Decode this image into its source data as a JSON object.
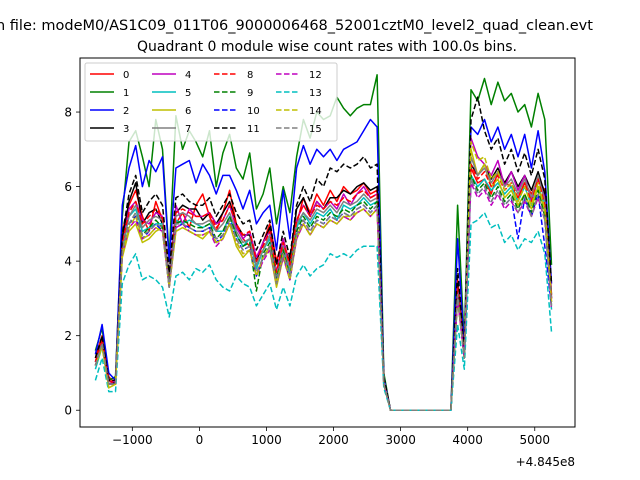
{
  "figure": {
    "suptitle": "n file: modeM0/AS1C09_011T06_9000006468_52001cztM0_level2_quad_clean.evt",
    "title": "Quadrant 0 module wise count rates with 100.0s bins.",
    "offset_text": "+4.845e8"
  },
  "chart_data": {
    "type": "line",
    "title": "Quadrant 0 module wise count rates with 100.0s bins.",
    "xlabel": "",
    "ylabel": "",
    "x_offset": 484500000,
    "xlim": [
      -1780,
      5600
    ],
    "ylim": [
      -0.45,
      9.45
    ],
    "xticks": [
      -1000,
      0,
      1000,
      2000,
      3000,
      4000,
      5000
    ],
    "xtick_labels": [
      "−1000",
      "0",
      "1000",
      "2000",
      "3000",
      "4000",
      "5000"
    ],
    "yticks": [
      0,
      2,
      4,
      6,
      8
    ],
    "ytick_labels": [
      "0",
      "2",
      "4",
      "6",
      "8"
    ],
    "legend": {
      "location": "top-left",
      "columns": 4
    },
    "x": [
      -1550,
      -1450,
      -1350,
      -1250,
      -1150,
      -1050,
      -950,
      -850,
      -750,
      -650,
      -550,
      -450,
      -350,
      -250,
      -150,
      -50,
      50,
      150,
      250,
      350,
      450,
      550,
      650,
      750,
      850,
      950,
      1050,
      1150,
      1250,
      1350,
      1450,
      1550,
      1650,
      1750,
      1850,
      1950,
      2050,
      2150,
      2250,
      2350,
      2450,
      2550,
      2650,
      2750,
      2850,
      2950,
      3050,
      3150,
      3250,
      3350,
      3450,
      3550,
      3650,
      3750,
      3850,
      3950,
      4050,
      4150,
      4250,
      4350,
      4450,
      4550,
      4650,
      4750,
      4850,
      4950,
      5050,
      5150,
      5250
    ],
    "series": [
      {
        "name": "0",
        "color": "#ff0000",
        "dash": "solid",
        "values": [
          1.4,
          2.0,
          0.9,
          0.7,
          4.8,
          5.5,
          5.9,
          5.2,
          4.8,
          5.6,
          5.1,
          3.5,
          5.0,
          5.3,
          4.9,
          5.5,
          5.8,
          5.2,
          4.8,
          5.3,
          5.9,
          5.0,
          4.6,
          4.4,
          4.0,
          4.5,
          5.0,
          4.0,
          4.6,
          3.9,
          5.0,
          5.7,
          5.3,
          5.8,
          5.5,
          5.9,
          5.6,
          6.0,
          5.8,
          5.9,
          6.1,
          5.8,
          5.9,
          0.8,
          0,
          0,
          0,
          0,
          0,
          0,
          0,
          0,
          0,
          0,
          3.5,
          1.6,
          6.5,
          6.1,
          6.2,
          5.8,
          6.4,
          6.1,
          6.0,
          5.7,
          6.1,
          5.8,
          6.2,
          5.9,
          3.0
        ]
      },
      {
        "name": "1",
        "color": "#008000",
        "dash": "solid",
        "values": [
          1.6,
          2.2,
          0.8,
          0.9,
          5.2,
          7.2,
          7.5,
          6.8,
          6.0,
          7.8,
          7.0,
          4.1,
          7.9,
          7.0,
          7.5,
          7.2,
          6.8,
          7.5,
          6.0,
          6.9,
          7.4,
          6.5,
          6.2,
          6.9,
          5.4,
          5.8,
          6.5,
          5.0,
          6.0,
          5.3,
          6.8,
          7.8,
          7.3,
          8.0,
          7.8,
          7.9,
          8.4,
          8.1,
          7.9,
          8.1,
          8.2,
          8.2,
          9.0,
          1.0,
          0,
          0,
          0,
          0,
          0,
          0,
          0,
          0,
          0,
          0,
          5.5,
          1.8,
          8.6,
          8.3,
          8.9,
          8.2,
          8.8,
          8.3,
          8.5,
          8.0,
          8.2,
          7.6,
          8.5,
          7.8,
          3.9
        ]
      },
      {
        "name": "2",
        "color": "#0000ff",
        "dash": "solid",
        "values": [
          1.5,
          2.3,
          1.0,
          0.8,
          5.5,
          6.5,
          7.1,
          6.0,
          6.7,
          6.4,
          6.8,
          4.0,
          6.5,
          6.6,
          6.7,
          6.1,
          6.6,
          6.3,
          5.8,
          6.3,
          6.3,
          5.9,
          5.4,
          5.9,
          5.0,
          5.3,
          5.5,
          4.3,
          5.9,
          4.6,
          6.5,
          7.1,
          6.6,
          7.0,
          6.8,
          7.0,
          6.7,
          7.0,
          7.1,
          7.2,
          7.5,
          7.8,
          7.6,
          0.9,
          0,
          0,
          0,
          0,
          0,
          0,
          0,
          0,
          0,
          0,
          4.6,
          1.7,
          7.6,
          7.4,
          7.8,
          7.2,
          7.6,
          7.0,
          7.4,
          6.8,
          7.4,
          6.5,
          7.5,
          6.4,
          3.4
        ]
      },
      {
        "name": "3",
        "color": "#000000",
        "dash": "solid",
        "values": [
          1.3,
          1.9,
          0.8,
          0.7,
          4.6,
          5.6,
          6.1,
          5.0,
          5.3,
          5.4,
          5.0,
          3.6,
          5.3,
          5.5,
          5.4,
          5.4,
          5.1,
          5.3,
          5.0,
          5.3,
          5.6,
          5.0,
          4.7,
          4.7,
          4.0,
          4.5,
          4.9,
          3.6,
          4.4,
          4.0,
          5.4,
          5.7,
          5.2,
          5.6,
          5.4,
          5.7,
          5.7,
          5.9,
          5.8,
          6.0,
          6.1,
          5.9,
          6.0,
          0.8,
          0,
          0,
          0,
          0,
          0,
          0,
          0,
          0,
          0,
          0,
          3.4,
          1.5,
          6.6,
          6.3,
          6.6,
          6.2,
          6.5,
          6.1,
          6.4,
          6.0,
          6.3,
          5.9,
          6.4,
          5.8,
          3.1
        ]
      },
      {
        "name": "4",
        "color": "#bf00bf",
        "dash": "solid",
        "values": [
          1.2,
          1.8,
          0.7,
          0.8,
          4.4,
          5.4,
          5.6,
          5.1,
          5.0,
          5.3,
          5.2,
          3.4,
          5.5,
          5.0,
          5.4,
          5.2,
          5.2,
          5.3,
          5.0,
          5.1,
          5.5,
          4.9,
          4.6,
          4.8,
          4.1,
          4.5,
          4.8,
          3.7,
          4.6,
          3.8,
          5.1,
          5.5,
          5.2,
          5.6,
          5.4,
          5.6,
          5.4,
          5.8,
          5.5,
          5.8,
          6.0,
          5.7,
          5.8,
          0.8,
          0,
          0,
          0,
          0,
          0,
          0,
          0,
          0,
          0,
          0,
          3.3,
          1.5,
          7.3,
          6.8,
          6.6,
          6.3,
          6.7,
          6.0,
          6.4,
          5.9,
          6.3,
          5.6,
          6.2,
          5.7,
          3.0
        ]
      },
      {
        "name": "5",
        "color": "#00bfbf",
        "dash": "solid",
        "values": [
          1.1,
          1.7,
          0.7,
          0.7,
          4.3,
          5.2,
          5.4,
          4.8,
          4.9,
          5.0,
          5.0,
          3.3,
          5.1,
          5.0,
          5.1,
          5.0,
          4.9,
          5.0,
          4.8,
          4.8,
          5.2,
          4.7,
          4.4,
          4.6,
          3.8,
          4.3,
          4.6,
          3.5,
          4.3,
          3.7,
          4.9,
          5.3,
          5.0,
          5.3,
          5.2,
          5.4,
          5.1,
          5.5,
          5.4,
          5.5,
          5.7,
          5.5,
          5.6,
          0.7,
          0,
          0,
          0,
          0,
          0,
          0,
          0,
          0,
          0,
          0,
          3.1,
          1.4,
          6.3,
          6.0,
          6.2,
          5.9,
          6.1,
          5.8,
          6.0,
          5.6,
          6.0,
          5.5,
          6.0,
          5.5,
          2.7
        ]
      },
      {
        "name": "6",
        "color": "#bfbf00",
        "dash": "solid",
        "values": [
          1.2,
          1.7,
          0.6,
          0.7,
          4.1,
          4.8,
          5.0,
          4.5,
          4.6,
          4.8,
          4.9,
          3.3,
          4.8,
          4.9,
          4.8,
          4.7,
          4.6,
          4.8,
          4.5,
          4.6,
          5.0,
          4.4,
          4.1,
          4.3,
          3.6,
          4.1,
          4.3,
          3.3,
          4.1,
          3.5,
          4.6,
          5.0,
          4.7,
          5.0,
          4.9,
          5.1,
          5.0,
          5.2,
          5.1,
          5.3,
          5.4,
          5.2,
          5.4,
          0.7,
          0,
          0,
          0,
          0,
          0,
          0,
          0,
          0,
          0,
          0,
          3.0,
          1.4,
          7.0,
          6.3,
          6.6,
          6.0,
          6.2,
          5.7,
          5.9,
          5.5,
          5.8,
          5.4,
          6.0,
          5.3,
          2.9
        ]
      },
      {
        "name": "7",
        "color": "#808080",
        "dash": "solid",
        "values": [
          1.3,
          1.8,
          0.7,
          0.7,
          4.4,
          5.2,
          5.5,
          4.9,
          5.1,
          5.2,
          5.1,
          3.4,
          5.2,
          5.3,
          5.2,
          5.0,
          5.0,
          5.1,
          4.8,
          5.0,
          5.3,
          4.8,
          4.5,
          4.6,
          3.9,
          4.3,
          4.7,
          3.6,
          4.4,
          3.8,
          5.0,
          5.3,
          5.1,
          5.4,
          5.3,
          5.5,
          5.3,
          5.6,
          5.5,
          5.6,
          5.8,
          5.6,
          5.7,
          0.8,
          0,
          0,
          0,
          0,
          0,
          0,
          0,
          0,
          0,
          0,
          3.2,
          1.5,
          6.8,
          6.3,
          6.5,
          6.1,
          6.4,
          6.0,
          6.2,
          5.8,
          6.2,
          5.7,
          6.3,
          5.6,
          3.0
        ]
      },
      {
        "name": "8",
        "color": "#ff0000",
        "dash": "dashed",
        "values": [
          1.3,
          1.9,
          0.8,
          0.7,
          4.5,
          5.3,
          5.6,
          5.0,
          5.2,
          5.4,
          5.2,
          3.5,
          5.3,
          5.4,
          5.3,
          5.2,
          5.2,
          5.3,
          4.9,
          5.1,
          5.5,
          5.0,
          4.7,
          4.8,
          4.0,
          4.4,
          4.8,
          3.7,
          4.5,
          3.9,
          5.1,
          5.5,
          5.2,
          5.5,
          5.4,
          5.6,
          5.5,
          5.7,
          5.6,
          5.8,
          5.9,
          5.7,
          5.8,
          0.8,
          0,
          0,
          0,
          0,
          0,
          0,
          0,
          0,
          0,
          0,
          3.3,
          1.5,
          6.6,
          6.2,
          6.4,
          6.0,
          6.3,
          5.9,
          6.1,
          5.7,
          6.1,
          5.6,
          6.2,
          5.5,
          3.0
        ]
      },
      {
        "name": "9",
        "color": "#008000",
        "dash": "dashed",
        "values": [
          1.2,
          1.8,
          0.7,
          0.7,
          4.3,
          5.0,
          5.3,
          4.7,
          4.9,
          5.1,
          4.9,
          3.4,
          5.0,
          5.1,
          5.0,
          4.9,
          4.9,
          5.0,
          4.6,
          4.8,
          5.2,
          4.7,
          4.4,
          4.5,
          3.2,
          4.2,
          4.5,
          3.5,
          4.3,
          3.6,
          4.8,
          5.2,
          4.9,
          5.2,
          5.1,
          5.3,
          5.2,
          5.4,
          5.3,
          5.5,
          5.6,
          5.4,
          5.6,
          0.7,
          0,
          0,
          0,
          0,
          0,
          0,
          0,
          0,
          0,
          0,
          3.1,
          1.4,
          6.3,
          5.9,
          6.1,
          5.7,
          6.0,
          5.6,
          5.8,
          5.4,
          5.8,
          5.3,
          5.9,
          5.2,
          2.8
        ]
      },
      {
        "name": "10",
        "color": "#0000ff",
        "dash": "dashed",
        "values": [
          1.2,
          1.8,
          0.7,
          0.7,
          4.2,
          5.0,
          5.2,
          4.6,
          4.8,
          5.0,
          4.8,
          3.3,
          4.9,
          5.0,
          4.9,
          4.8,
          4.8,
          4.9,
          4.5,
          4.7,
          5.1,
          4.6,
          4.3,
          4.4,
          3.6,
          4.1,
          4.4,
          3.4,
          4.2,
          3.5,
          4.7,
          5.1,
          4.8,
          5.1,
          5.0,
          5.2,
          5.1,
          5.3,
          5.2,
          5.4,
          5.5,
          5.3,
          5.5,
          0.7,
          0,
          0,
          0,
          0,
          0,
          0,
          0,
          0,
          0,
          0,
          3.0,
          1.4,
          6.2,
          5.8,
          6.0,
          5.6,
          5.9,
          5.5,
          5.7,
          4.6,
          5.7,
          5.2,
          5.8,
          4.4,
          2.8
        ]
      },
      {
        "name": "11",
        "color": "#000000",
        "dash": "dashed",
        "values": [
          1.4,
          2.0,
          0.8,
          0.8,
          4.7,
          5.8,
          6.3,
          5.3,
          5.6,
          5.8,
          5.5,
          3.7,
          5.7,
          5.8,
          5.6,
          5.5,
          5.5,
          5.7,
          5.2,
          5.5,
          5.8,
          5.3,
          5.0,
          5.1,
          4.3,
          4.7,
          5.1,
          3.9,
          4.8,
          4.1,
          5.5,
          6.0,
          5.6,
          6.2,
          6.0,
          6.5,
          6.4,
          6.6,
          6.5,
          6.6,
          6.8,
          6.5,
          6.6,
          0.9,
          0,
          0,
          0,
          0,
          0,
          0,
          0,
          0,
          0,
          0,
          3.8,
          1.6,
          7.8,
          8.4,
          7.5,
          7.0,
          7.3,
          6.6,
          7.0,
          6.4,
          6.9,
          6.3,
          7.0,
          6.2,
          3.4
        ]
      },
      {
        "name": "12",
        "color": "#bf00bf",
        "dash": "dashed",
        "values": [
          1.2,
          1.8,
          0.7,
          0.7,
          4.2,
          4.9,
          5.1,
          4.6,
          4.7,
          4.9,
          4.8,
          3.3,
          4.9,
          5.0,
          4.8,
          4.7,
          4.7,
          4.8,
          4.4,
          4.6,
          5.0,
          4.5,
          4.2,
          4.3,
          3.6,
          4.0,
          4.3,
          3.4,
          4.1,
          3.5,
          4.6,
          5.0,
          4.7,
          5.0,
          4.9,
          5.1,
          5.0,
          5.2,
          5.1,
          5.3,
          5.4,
          5.2,
          5.4,
          0.7,
          0,
          0,
          0,
          0,
          0,
          0,
          0,
          0,
          0,
          0,
          3.0,
          1.4,
          6.1,
          5.7,
          5.9,
          5.5,
          5.8,
          5.4,
          5.6,
          5.3,
          5.6,
          5.2,
          5.7,
          5.1,
          2.7
        ]
      },
      {
        "name": "13",
        "color": "#00bfbf",
        "dash": "dashed",
        "values": [
          0.8,
          1.4,
          0.5,
          0.5,
          3.4,
          3.9,
          4.2,
          3.5,
          3.6,
          3.5,
          3.3,
          2.5,
          3.6,
          3.7,
          3.5,
          3.8,
          3.7,
          3.9,
          3.5,
          3.3,
          3.2,
          3.6,
          3.4,
          3.3,
          2.8,
          3.1,
          3.4,
          2.7,
          3.3,
          2.8,
          3.6,
          3.9,
          3.6,
          3.8,
          3.9,
          4.2,
          4.1,
          4.2,
          4.1,
          4.3,
          4.4,
          4.4,
          4.4,
          0.6,
          0,
          0,
          0,
          0,
          0,
          0,
          0,
          0,
          0,
          0,
          2.3,
          1.1,
          5.0,
          5.1,
          5.3,
          4.9,
          5.0,
          4.5,
          4.7,
          4.3,
          4.6,
          4.5,
          4.8,
          4.2,
          2.1
        ]
      },
      {
        "name": "14",
        "color": "#bfbf00",
        "dash": "dashed",
        "values": [
          1.2,
          1.7,
          0.6,
          0.7,
          4.2,
          4.9,
          5.2,
          4.6,
          4.7,
          4.9,
          4.8,
          3.3,
          4.8,
          4.9,
          4.8,
          4.7,
          4.7,
          4.8,
          4.5,
          4.6,
          5.0,
          4.5,
          4.2,
          4.3,
          3.6,
          4.1,
          4.4,
          3.4,
          4.2,
          3.5,
          4.7,
          5.0,
          4.7,
          5.0,
          4.9,
          5.1,
          5.0,
          5.2,
          5.2,
          5.3,
          5.4,
          5.2,
          5.4,
          0.7,
          0,
          0,
          0,
          0,
          0,
          0,
          0,
          0,
          0,
          0,
          3.0,
          1.4,
          7.2,
          6.7,
          6.8,
          6.2,
          6.4,
          5.9,
          6.1,
          5.6,
          6.0,
          5.5,
          6.1,
          5.4,
          2.9
        ]
      },
      {
        "name": "15",
        "color": "#808080",
        "dash": "dashed",
        "values": [
          1.2,
          1.8,
          0.7,
          0.7,
          4.3,
          5.0,
          5.3,
          4.7,
          4.8,
          5.0,
          4.9,
          3.3,
          5.0,
          5.0,
          4.9,
          4.8,
          4.8,
          4.9,
          4.6,
          4.7,
          5.1,
          4.6,
          4.3,
          4.4,
          3.7,
          4.1,
          4.4,
          3.4,
          4.2,
          3.6,
          4.7,
          5.1,
          4.8,
          5.1,
          5.0,
          5.2,
          5.1,
          5.3,
          5.2,
          5.4,
          5.5,
          5.3,
          5.5,
          0.7,
          0,
          0,
          0,
          0,
          0,
          0,
          0,
          0,
          0,
          0,
          3.1,
          1.4,
          6.2,
          5.8,
          6.0,
          5.6,
          5.9,
          5.5,
          5.7,
          5.3,
          5.7,
          5.2,
          5.8,
          5.1,
          2.8
        ]
      }
    ]
  }
}
